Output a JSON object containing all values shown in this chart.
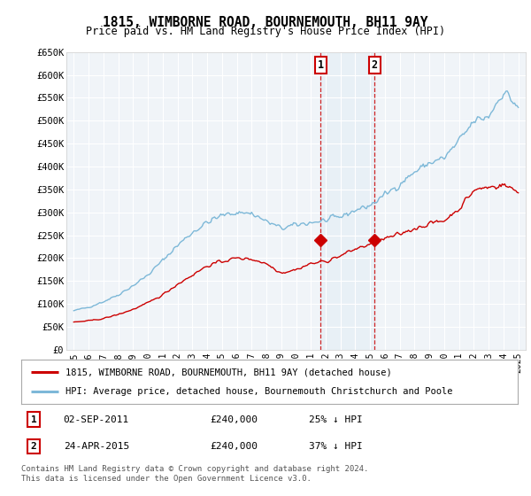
{
  "title": "1815, WIMBORNE ROAD, BOURNEMOUTH, BH11 9AY",
  "subtitle": "Price paid vs. HM Land Registry's House Price Index (HPI)",
  "background_color": "#ffffff",
  "plot_bg_color": "#f0f4f8",
  "grid_color": "#ffffff",
  "hpi_color": "#7db8d8",
  "price_color": "#cc0000",
  "marker_color": "#cc0000",
  "ylim": [
    0,
    650000
  ],
  "yticks": [
    0,
    50000,
    100000,
    150000,
    200000,
    250000,
    300000,
    350000,
    400000,
    450000,
    500000,
    550000,
    600000,
    650000
  ],
  "ytick_labels": [
    "£0",
    "£50K",
    "£100K",
    "£150K",
    "£200K",
    "£250K",
    "£300K",
    "£350K",
    "£400K",
    "£450K",
    "£500K",
    "£550K",
    "£600K",
    "£650K"
  ],
  "xtick_years": [
    1995,
    1996,
    1997,
    1998,
    1999,
    2000,
    2001,
    2002,
    2003,
    2004,
    2005,
    2006,
    2007,
    2008,
    2009,
    2010,
    2011,
    2012,
    2013,
    2014,
    2015,
    2016,
    2017,
    2018,
    2019,
    2020,
    2021,
    2022,
    2023,
    2024,
    2025
  ],
  "transaction1_year": 2011.67,
  "transaction1_price": 240000,
  "transaction2_year": 2015.3,
  "transaction2_price": 240000,
  "legend_line1": "1815, WIMBORNE ROAD, BOURNEMOUTH, BH11 9AY (detached house)",
  "legend_line2": "HPI: Average price, detached house, Bournemouth Christchurch and Poole",
  "annotation1_date": "02-SEP-2011",
  "annotation1_price": "£240,000",
  "annotation1_hpi": "25% ↓ HPI",
  "annotation2_date": "24-APR-2015",
  "annotation2_price": "£240,000",
  "annotation2_hpi": "37% ↓ HPI",
  "footer": "Contains HM Land Registry data © Crown copyright and database right 2024.\nThis data is licensed under the Open Government Licence v3.0.",
  "hpi_annual": [
    85000,
    93000,
    105000,
    120000,
    140000,
    163000,
    195000,
    228000,
    256000,
    278000,
    293000,
    300000,
    298000,
    280000,
    265000,
    272000,
    278000,
    282000,
    290000,
    305000,
    315000,
    338000,
    362000,
    388000,
    408000,
    418000,
    455000,
    498000,
    510000,
    565000,
    530000
  ],
  "price_annual": [
    60000,
    63000,
    68000,
    77000,
    88000,
    102000,
    120000,
    143000,
    163000,
    183000,
    193000,
    200000,
    198000,
    188000,
    168000,
    175000,
    188000,
    193000,
    205000,
    220000,
    230000,
    242000,
    252000,
    265000,
    275000,
    282000,
    308000,
    348000,
    355000,
    360000,
    345000
  ]
}
